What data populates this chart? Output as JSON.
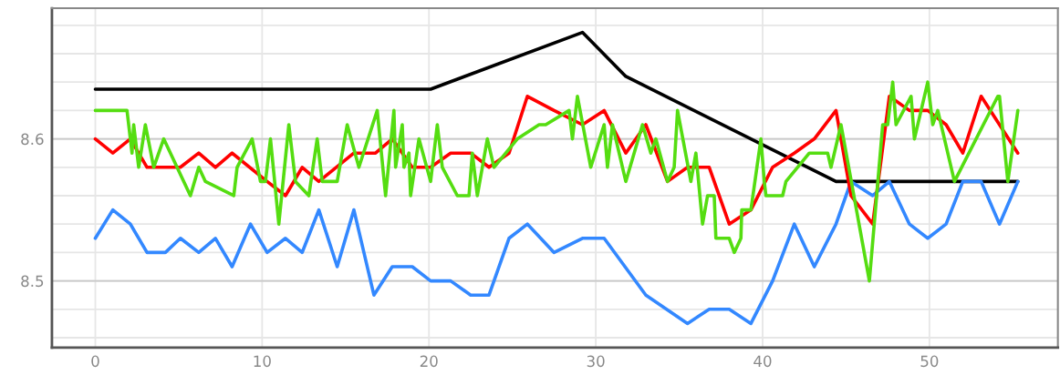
{
  "chart_data": {
    "type": "line",
    "xlim": [
      -2.6,
      57.7
    ],
    "ylim": [
      8.453,
      8.692
    ],
    "xticks": [
      0,
      10,
      20,
      30,
      40,
      50
    ],
    "yticks": [
      {
        "value": 8.46,
        "label": null
      },
      {
        "value": 8.48,
        "label": null
      },
      8.5,
      {
        "value": 8.52,
        "label": null
      },
      {
        "value": 8.54,
        "label": null
      },
      {
        "value": 8.56,
        "label": null
      },
      {
        "value": 8.58,
        "label": null
      },
      8.6,
      {
        "value": 8.62,
        "label": null
      },
      {
        "value": 8.64,
        "label": null
      },
      {
        "value": 8.66,
        "label": null
      },
      {
        "value": 8.68,
        "label": null
      }
    ],
    "grid": true,
    "marker": "none",
    "line_style": "solid",
    "series": [
      {
        "color": "#000000",
        "x": [
          0,
          20.1,
          29.2,
          31.8,
          44.4,
          55.3
        ],
        "values": [
          8.635,
          8.635,
          8.675,
          8.644,
          8.57,
          8.57
        ]
      },
      {
        "color": "#3388ff",
        "x": [
          0,
          1.05,
          2.1,
          3.1,
          4.2,
          5.1,
          6.2,
          7.2,
          8.2,
          9.3,
          10.3,
          11.4,
          12.4,
          13.4,
          14.5,
          15.5,
          16.7,
          17.8,
          19.0,
          20.1,
          21.3,
          22.5,
          23.6,
          24.8,
          25.9,
          27.5,
          29.2,
          30.5,
          33.0,
          35.5,
          36.8,
          38.0,
          39.3,
          40.6,
          41.9,
          43.1,
          44.4,
          45.3,
          46.6,
          47.6,
          48.8,
          49.9,
          51.0,
          52.0,
          53.1,
          54.2,
          55.3
        ],
        "values": [
          8.53,
          8.55,
          8.54,
          8.52,
          8.52,
          8.53,
          8.52,
          8.53,
          8.51,
          8.54,
          8.52,
          8.53,
          8.52,
          8.55,
          8.51,
          8.55,
          8.49,
          8.51,
          8.51,
          8.5,
          8.5,
          8.49,
          8.49,
          8.53,
          8.54,
          8.52,
          8.53,
          8.53,
          8.49,
          8.47,
          8.48,
          8.48,
          8.47,
          8.5,
          8.54,
          8.51,
          8.54,
          8.57,
          8.56,
          8.57,
          8.54,
          8.53,
          8.54,
          8.57,
          8.57,
          8.54,
          8.57
        ]
      },
      {
        "color": "#ff0000",
        "x": [
          0,
          1.05,
          2.1,
          3.1,
          5.1,
          6.2,
          7.2,
          8.2,
          10.3,
          11.4,
          12.4,
          13.4,
          15.5,
          16.8,
          17.8,
          19.0,
          20.1,
          21.3,
          22.5,
          23.6,
          24.8,
          25.9,
          27.5,
          29.2,
          30.5,
          31.8,
          33.0,
          34.3,
          35.5,
          36.8,
          38.0,
          39.3,
          40.6,
          41.9,
          43.1,
          44.4,
          45.3,
          46.6,
          47.6,
          48.8,
          49.9,
          51.0,
          52.0,
          53.1,
          54.2,
          55.3
        ],
        "values": [
          8.6,
          8.59,
          8.6,
          8.58,
          8.58,
          8.59,
          8.58,
          8.59,
          8.57,
          8.56,
          8.58,
          8.57,
          8.59,
          8.59,
          8.6,
          8.58,
          8.58,
          8.59,
          8.59,
          8.58,
          8.59,
          8.63,
          8.62,
          8.61,
          8.62,
          8.59,
          8.61,
          8.57,
          8.58,
          8.58,
          8.54,
          8.55,
          8.58,
          8.59,
          8.6,
          8.62,
          8.56,
          8.54,
          8.63,
          8.62,
          8.62,
          8.61,
          8.59,
          8.63,
          8.61,
          8.59
        ]
      },
      {
        "color": "#55dd11",
        "x": [
          0,
          1.9,
          2.2,
          2.3,
          2.6,
          3.0,
          3.5,
          4.1,
          5.7,
          6.2,
          6.6,
          8.3,
          8.5,
          9.4,
          9.9,
          10.2,
          10.5,
          11.0,
          11.6,
          12.0,
          12.8,
          13.3,
          13.6,
          14.5,
          15.1,
          15.8,
          16.9,
          17.4,
          17.9,
          18.0,
          18.4,
          18.5,
          18.8,
          18.9,
          19.4,
          20.1,
          20.5,
          20.8,
          21.7,
          22.4,
          22.6,
          22.9,
          23.5,
          23.9,
          25.3,
          26.6,
          27.0,
          28.4,
          28.6,
          28.9,
          29.7,
          30.5,
          30.7,
          31.0,
          31.8,
          32.8,
          33.3,
          33.6,
          34.3,
          34.7,
          34.9,
          35.7,
          36.0,
          36.4,
          36.7,
          37.1,
          37.2,
          38.0,
          38.3,
          38.7,
          38.75,
          39.3,
          39.9,
          40.1,
          40.2,
          41.2,
          41.4,
          42.8,
          43.9,
          44.1,
          44.7,
          46.4,
          47.2,
          47.5,
          47.8,
          48.0,
          48.9,
          49.1,
          49.9,
          50.2,
          50.5,
          51.5,
          54.1,
          54.2,
          54.7,
          55.3
        ],
        "values": [
          8.62,
          8.62,
          8.59,
          8.61,
          8.58,
          8.61,
          8.58,
          8.6,
          8.56,
          8.58,
          8.57,
          8.56,
          8.58,
          8.6,
          8.57,
          8.57,
          8.6,
          8.54,
          8.61,
          8.57,
          8.56,
          8.6,
          8.57,
          8.57,
          8.61,
          8.58,
          8.62,
          8.56,
          8.62,
          8.58,
          8.61,
          8.58,
          8.59,
          8.56,
          8.6,
          8.57,
          8.61,
          8.58,
          8.56,
          8.56,
          8.59,
          8.56,
          8.6,
          8.58,
          8.6,
          8.61,
          8.61,
          8.62,
          8.6,
          8.63,
          8.58,
          8.61,
          8.58,
          8.61,
          8.57,
          8.61,
          8.59,
          8.6,
          8.57,
          8.58,
          8.62,
          8.57,
          8.59,
          8.54,
          8.56,
          8.56,
          8.53,
          8.53,
          8.52,
          8.53,
          8.55,
          8.55,
          8.6,
          8.57,
          8.56,
          8.56,
          8.57,
          8.59,
          8.59,
          8.58,
          8.61,
          8.5,
          8.61,
          8.61,
          8.64,
          8.61,
          8.63,
          8.6,
          8.64,
          8.61,
          8.62,
          8.57,
          8.63,
          8.63,
          8.57,
          8.62
        ]
      }
    ]
  }
}
